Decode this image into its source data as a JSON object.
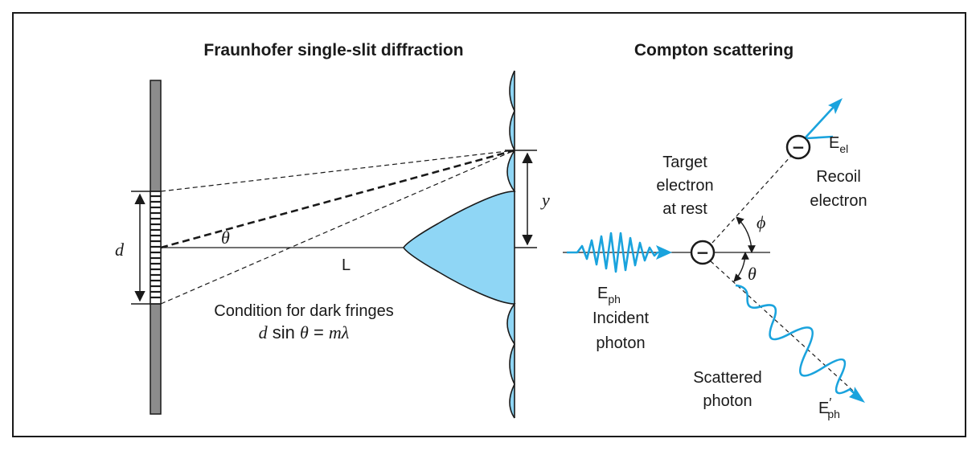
{
  "colors": {
    "accent": "#1aa3dd",
    "fill": "#8fd6f5",
    "screen": "#8c8c8c",
    "ink": "#1a1a1a"
  },
  "diffraction": {
    "title": "Fraunhofer single-slit diffraction",
    "label_d": "d",
    "label_theta": "θ",
    "label_L": "L",
    "label_y": "y",
    "condition_line1": "Condition for dark fringes",
    "condition_eq_d": "d",
    "condition_eq_sin": " sin ",
    "condition_eq_theta": "θ",
    "condition_eq_eq": " = ",
    "condition_eq_m": "m",
    "condition_eq_lambda": "λ"
  },
  "compton": {
    "title": "Compton scattering",
    "target_line1": "Target",
    "target_line2": "electron",
    "target_line3": "at rest",
    "recoil_line1": "Recoil",
    "recoil_line2": "electron",
    "e_el_main": "E",
    "e_el_sub": "el",
    "phi": "ϕ",
    "theta": "θ",
    "e_ph_main": "E",
    "e_ph_sub": "ph",
    "incident_line1": "Incident",
    "incident_line2": "photon",
    "scattered_line1": "Scattered",
    "scattered_line2": "photon",
    "e_ph_prime_main": "E",
    "e_ph_prime_mark": "′",
    "e_ph_prime_sub": "ph",
    "minus": "−"
  }
}
